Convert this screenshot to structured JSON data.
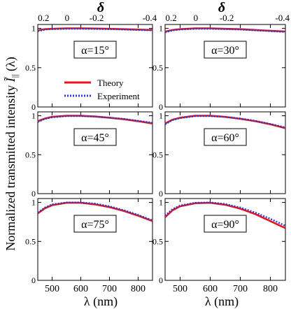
{
  "figure": {
    "ylabel_prefix": "Normalized transmitted intensity ",
    "ylabel_symbol": "Ĩ",
    "ylabel_subscript": "||",
    "ylabel_suffix": " (λ)",
    "xlabel": "λ (nm)",
    "top_axis_label": "δ",
    "legend": {
      "theory": "Theory",
      "experiment": "Experiment"
    }
  },
  "colors": {
    "theory": "#e8141b",
    "experiment": "#1f3fd8"
  },
  "chart_data": [
    {
      "type": "line",
      "annotation": "α=15°",
      "xlim": [
        450,
        850
      ],
      "ylim": [
        0,
        1.05
      ],
      "x_ticks": [
        500,
        600,
        700,
        800
      ],
      "y_ticks": [
        "0",
        "0.5",
        "1"
      ],
      "top_ticks": [
        "0.2",
        "0",
        "-0.2",
        "-0.4"
      ],
      "x": [
        450,
        475,
        500,
        550,
        600,
        650,
        700,
        750,
        800,
        850
      ],
      "series": [
        {
          "name": "Theory",
          "values": [
            0.975,
            0.99,
            0.995,
            1.0,
            1.0,
            0.998,
            0.995,
            0.99,
            0.985,
            0.98
          ]
        },
        {
          "name": "Experiment",
          "values": [
            0.965,
            0.985,
            0.99,
            0.995,
            0.995,
            0.993,
            0.99,
            0.985,
            0.98,
            0.975
          ]
        }
      ]
    },
    {
      "type": "line",
      "annotation": "α=30°",
      "xlim": [
        450,
        850
      ],
      "ylim": [
        0,
        1.05
      ],
      "x_ticks": [
        500,
        600,
        700,
        800
      ],
      "y_ticks": [
        "0",
        "0.5",
        "1"
      ],
      "top_ticks": [
        "0.2",
        "0",
        "-0.2",
        "-0.4"
      ],
      "x": [
        450,
        475,
        500,
        550,
        600,
        650,
        700,
        750,
        800,
        850
      ],
      "series": [
        {
          "name": "Theory",
          "values": [
            0.96,
            0.98,
            0.99,
            1.0,
            1.0,
            0.995,
            0.99,
            0.98,
            0.97,
            0.96
          ]
        },
        {
          "name": "Experiment",
          "values": [
            0.95,
            0.975,
            0.985,
            0.995,
            0.995,
            0.99,
            0.985,
            0.975,
            0.965,
            0.955
          ]
        }
      ]
    },
    {
      "type": "line",
      "annotation": "α=45°",
      "xlim": [
        450,
        850
      ],
      "ylim": [
        0,
        1.05
      ],
      "x_ticks": [
        500,
        600,
        700,
        800
      ],
      "y_ticks": [
        "0",
        "0.5",
        "1"
      ],
      "top_ticks": [],
      "x": [
        450,
        475,
        500,
        550,
        600,
        650,
        700,
        750,
        800,
        850
      ],
      "series": [
        {
          "name": "Theory",
          "values": [
            0.93,
            0.965,
            0.985,
            1.0,
            1.0,
            0.99,
            0.975,
            0.955,
            0.93,
            0.9
          ]
        },
        {
          "name": "Experiment",
          "values": [
            0.92,
            0.96,
            0.98,
            0.995,
            0.995,
            0.99,
            0.975,
            0.96,
            0.935,
            0.91
          ]
        }
      ]
    },
    {
      "type": "line",
      "annotation": "α=60°",
      "xlim": [
        450,
        850
      ],
      "ylim": [
        0,
        1.05
      ],
      "x_ticks": [
        500,
        600,
        700,
        800
      ],
      "y_ticks": [
        "0",
        "0.5",
        "1"
      ],
      "top_ticks": [],
      "x": [
        450,
        475,
        500,
        550,
        600,
        650,
        700,
        750,
        800,
        850
      ],
      "series": [
        {
          "name": "Theory",
          "values": [
            0.9,
            0.95,
            0.975,
            1.0,
            1.0,
            0.985,
            0.96,
            0.93,
            0.89,
            0.84
          ]
        },
        {
          "name": "Experiment",
          "values": [
            0.89,
            0.945,
            0.97,
            0.995,
            0.995,
            0.985,
            0.965,
            0.935,
            0.895,
            0.85
          ]
        }
      ]
    },
    {
      "type": "line",
      "annotation": "α=75°",
      "xlim": [
        450,
        850
      ],
      "ylim": [
        0,
        1.05
      ],
      "x_ticks": [
        500,
        600,
        700,
        800
      ],
      "y_ticks": [
        "0",
        "0.5",
        "1"
      ],
      "top_ticks": [],
      "x": [
        450,
        475,
        500,
        550,
        600,
        650,
        700,
        750,
        800,
        850
      ],
      "series": [
        {
          "name": "Theory",
          "values": [
            0.86,
            0.925,
            0.965,
            0.995,
            0.995,
            0.975,
            0.94,
            0.89,
            0.83,
            0.76
          ]
        },
        {
          "name": "Experiment",
          "values": [
            0.87,
            0.935,
            0.975,
            1.0,
            1.0,
            0.985,
            0.95,
            0.9,
            0.84,
            0.77
          ]
        }
      ]
    },
    {
      "type": "line",
      "annotation": "α=90°",
      "xlim": [
        450,
        850
      ],
      "ylim": [
        0,
        1.05
      ],
      "x_ticks": [
        500,
        600,
        700,
        800
      ],
      "y_ticks": [
        "0",
        "0.5",
        "1"
      ],
      "top_ticks": [],
      "x": [
        450,
        475,
        500,
        550,
        600,
        650,
        700,
        750,
        800,
        850
      ],
      "series": [
        {
          "name": "Theory",
          "values": [
            0.81,
            0.9,
            0.95,
            0.99,
            0.995,
            0.97,
            0.92,
            0.85,
            0.76,
            0.67
          ]
        },
        {
          "name": "Experiment",
          "values": [
            0.83,
            0.915,
            0.96,
            0.995,
            1.0,
            0.98,
            0.935,
            0.87,
            0.79,
            0.7
          ]
        }
      ]
    }
  ]
}
